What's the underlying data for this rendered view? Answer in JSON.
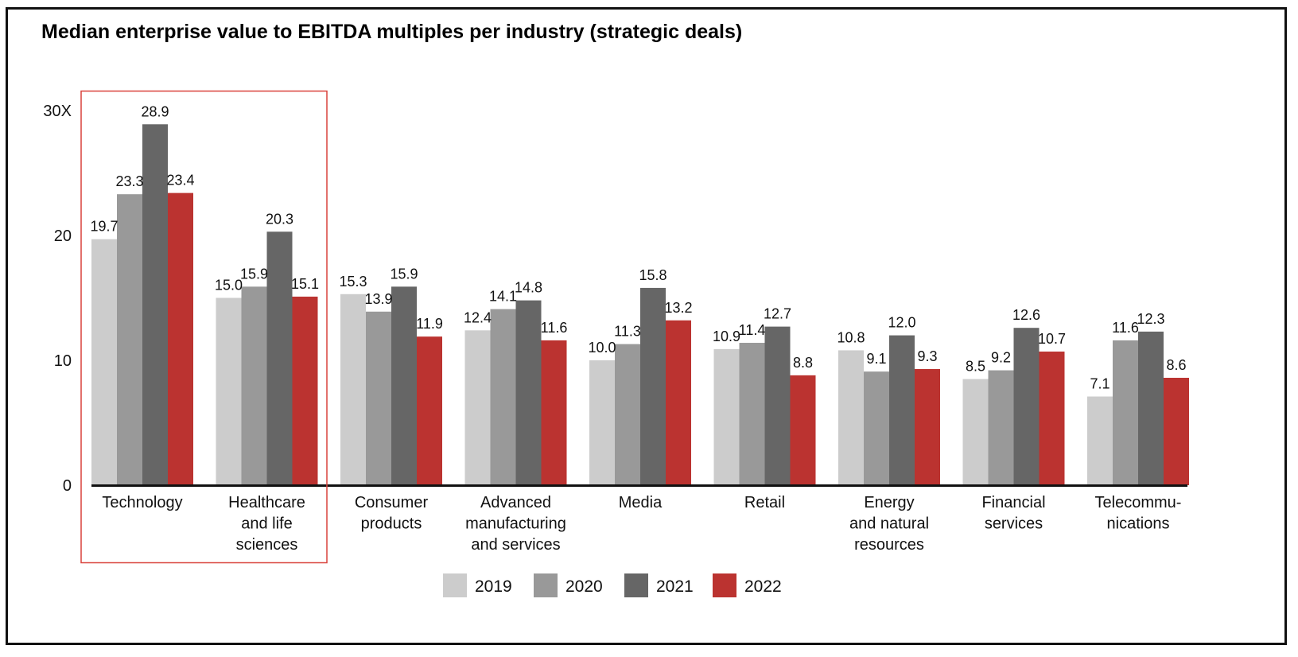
{
  "chart_data": {
    "type": "bar",
    "title": "Median enterprise value to EBITDA multiples per industry (strategic deals)",
    "categories": [
      [
        "Technology"
      ],
      [
        "Healthcare",
        "and life",
        "sciences"
      ],
      [
        "Consumer",
        "products"
      ],
      [
        "Advanced",
        "manufacturing",
        "and services"
      ],
      [
        "Media"
      ],
      [
        "Retail"
      ],
      [
        "Energy",
        "and natural",
        "resources"
      ],
      [
        "Financial",
        "services"
      ],
      [
        "Telecommu-",
        "nications"
      ]
    ],
    "series": [
      {
        "name": "2019",
        "color": "#cccccc",
        "values": [
          19.7,
          15.0,
          15.3,
          12.4,
          10.0,
          10.9,
          10.8,
          8.5,
          7.1
        ]
      },
      {
        "name": "2020",
        "color": "#999999",
        "values": [
          23.3,
          15.9,
          13.9,
          14.1,
          11.3,
          11.4,
          9.1,
          9.2,
          11.6
        ]
      },
      {
        "name": "2021",
        "color": "#666666",
        "values": [
          28.9,
          20.3,
          15.9,
          14.8,
          15.8,
          12.7,
          12.0,
          12.6,
          12.3
        ]
      },
      {
        "name": "2022",
        "color": "#bb3330",
        "values": [
          23.4,
          15.1,
          11.9,
          11.6,
          13.2,
          8.8,
          9.3,
          10.7,
          8.6
        ]
      }
    ],
    "yticks": [
      "0",
      "10",
      "20",
      "30X"
    ],
    "ytick_values": [
      0,
      10,
      20,
      30
    ],
    "ylim": [
      0,
      30
    ],
    "grid": false,
    "legend": "bottom-center",
    "highlight": {
      "categories": [
        "Technology",
        "Healthcare and life sciences"
      ],
      "color": "#d9423c"
    }
  }
}
